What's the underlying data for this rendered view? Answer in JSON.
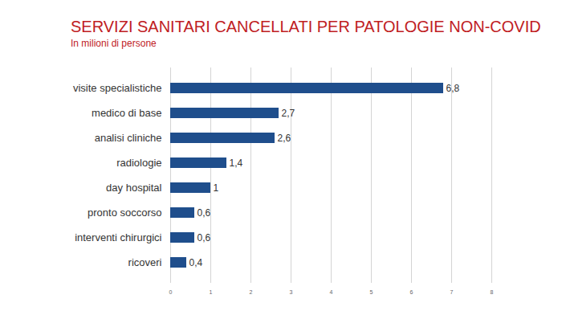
{
  "chart_data": {
    "type": "bar",
    "title": "SERVIZI SANITARI CANCELLATI PER PATOLOGIE NON-COVID",
    "subtitle": "In milioni di persone",
    "orientation": "horizontal",
    "categories": [
      "visite specialistiche",
      "medico di base",
      "analisi cliniche",
      "radiologie",
      "day hospital",
      "pronto soccorso",
      "interventi chirurgici",
      "ricoveri"
    ],
    "values": [
      6.8,
      2.7,
      2.6,
      1.4,
      1,
      0.6,
      0.6,
      0.4
    ],
    "value_labels": [
      "6,8",
      "2,7",
      "2,6",
      "1,4",
      "1",
      "0,6",
      "0,6",
      "0,4"
    ],
    "data_labels": true,
    "color": "#1f4e8c",
    "xlim": [
      0,
      8
    ],
    "xticks": [
      0,
      1,
      2,
      3,
      4,
      5,
      6,
      7,
      8
    ],
    "grid": true
  }
}
